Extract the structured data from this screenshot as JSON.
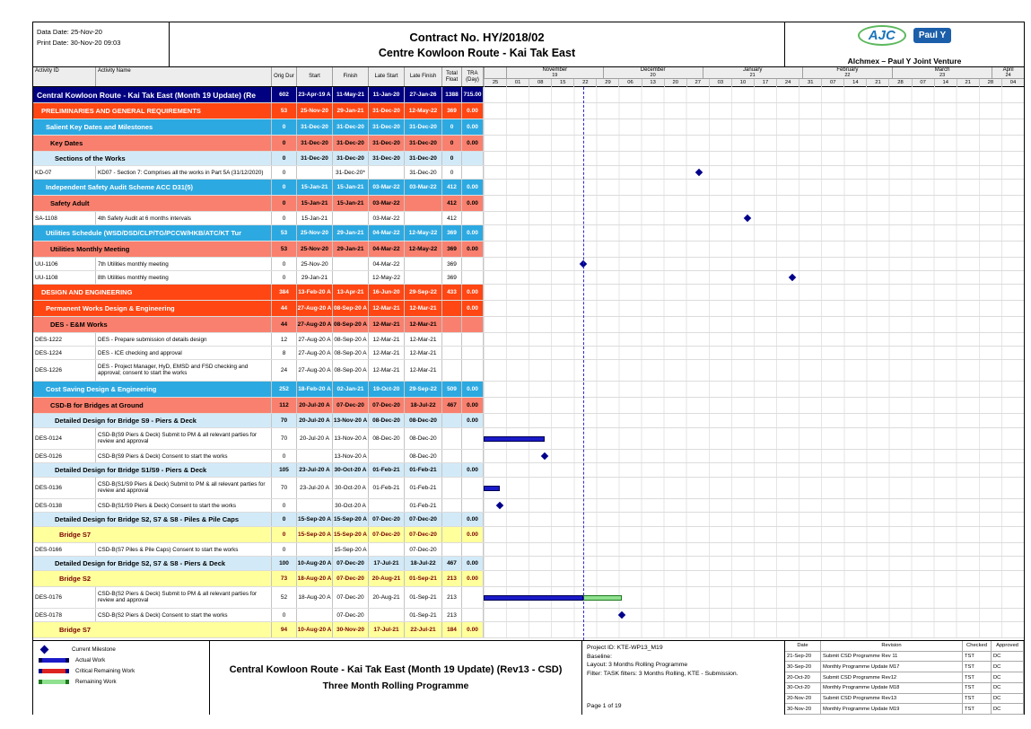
{
  "header": {
    "data_date": "Data Date: 25-Nov-20",
    "print_date": "Print Date: 30-Nov-20 09:03",
    "title": "Contract No. HY/2018/02",
    "subtitle": "Centre Kowloon Route - Kai Tak East",
    "logo_ajc": "AJC",
    "logo_pauly": "Paul Y",
    "venture": "Alchmex – Paul Y Joint Venture"
  },
  "columns": [
    "Activity ID",
    "Activity Name",
    "Orig Dur",
    "Start",
    "Finish",
    "Late Start",
    "Late Finish",
    "Total Float",
    "TRA (Day)"
  ],
  "timeline": {
    "months": [
      {
        "name": "",
        "num": "",
        "d0": 0,
        "d1": 7
      },
      {
        "name": "November",
        "num": "19",
        "d0": 7,
        "d1": 37
      },
      {
        "name": "December",
        "num": "20",
        "d0": 37,
        "d1": 68
      },
      {
        "name": "January",
        "num": "21",
        "d0": 68,
        "d1": 99
      },
      {
        "name": "February",
        "num": "22",
        "d0": 99,
        "d1": 127
      },
      {
        "name": "March",
        "num": "23",
        "d0": 127,
        "d1": 158
      },
      {
        "name": "April",
        "num": "24",
        "d0": 158,
        "d1": 168
      }
    ],
    "weeks": [
      "25",
      "01",
      "08",
      "15",
      "22",
      "29",
      "06",
      "13",
      "20",
      "27",
      "03",
      "10",
      "17",
      "24",
      "31",
      "07",
      "14",
      "21",
      "28",
      "07",
      "14",
      "21",
      "28",
      "04"
    ],
    "data_date_day": 31
  },
  "colors": {
    "navy_band": "#000080",
    "orange_band": "#FF4613",
    "blue_band": "#2DA9E1",
    "salmon_band": "#F9806E",
    "pale_blue_band": "#D2EAF8",
    "yellow_band": "#FFFF9C",
    "actual_bar": "#1A1AC8",
    "remaining_bar": "#8FE08F",
    "critical_bar": "#DD2222",
    "milestone": "#00008B",
    "data_date_line": "#2929D6"
  },
  "rows": [
    {
      "t": "navy",
      "lvl": 0,
      "label": "Central Kowloon Route - Kai Tak East (Month 19 Update) (Re",
      "d": "602",
      "s": "23-Apr-19 A",
      "f": "11-May-21",
      "ls": "11-Jan-20",
      "lf": "27-Jan-26",
      "tf": "1388",
      "tra": "715.00"
    },
    {
      "t": "orange",
      "lvl": 1,
      "label": "PRELIMINARIES AND GENERAL REQUIREMENTS",
      "d": "53",
      "s": "25-Nov-20",
      "f": "29-Jan-21",
      "ls": "31-Dec-20",
      "lf": "12-May-22",
      "tf": "369",
      "tra": "0.00"
    },
    {
      "t": "blue",
      "lvl": 2,
      "label": "Salient Key Dates and Milestones",
      "d": "0",
      "s": "31-Dec-20",
      "f": "31-Dec-20",
      "ls": "31-Dec-20",
      "lf": "31-Dec-20",
      "tf": "0",
      "tra": "0.00"
    },
    {
      "t": "salmon",
      "lvl": 3,
      "label": "Key Dates",
      "d": "0",
      "s": "31-Dec-20",
      "f": "31-Dec-20",
      "ls": "31-Dec-20",
      "lf": "31-Dec-20",
      "tf": "0",
      "tra": "0.00"
    },
    {
      "t": "sub",
      "lvl": 4,
      "label": "Sections of the Works",
      "d": "0",
      "s": "31-Dec-20",
      "f": "31-Dec-20",
      "ls": "31-Dec-20",
      "lf": "31-Dec-20",
      "tf": "0",
      "tra": ""
    },
    {
      "t": "task",
      "id": "KD-07",
      "name": "KD07 - Section 7: Comprises all the works in Part 5A (31/12/2020)",
      "d": "0",
      "s": "",
      "f": "31-Dec-20*",
      "ls": "",
      "lf": "31-Dec-20",
      "tf": "0",
      "tra": "",
      "g": [
        {
          "k": "ms",
          "day": 67
        }
      ]
    },
    {
      "t": "blue",
      "lvl": 2,
      "label": "Independent Safety Audit Scheme ACC D31(5)",
      "d": "0",
      "s": "15-Jan-21",
      "f": "15-Jan-21",
      "ls": "03-Mar-22",
      "lf": "03-Mar-22",
      "tf": "412",
      "tra": "0.00"
    },
    {
      "t": "salmon",
      "lvl": 3,
      "label": "Safety Adult",
      "d": "0",
      "s": "15-Jan-21",
      "f": "15-Jan-21",
      "ls": "03-Mar-22",
      "lf": "",
      "tf": "412",
      "tra": "0.00"
    },
    {
      "t": "task",
      "id": "SA-1108",
      "name": "4th Safety Audit at 6 months intervals",
      "d": "0",
      "s": "15-Jan-21",
      "f": "",
      "ls": "03-Mar-22",
      "lf": "",
      "tf": "412",
      "tra": "",
      "g": [
        {
          "k": "ms",
          "day": 82
        }
      ]
    },
    {
      "t": "blue",
      "lvl": 2,
      "label": "Utilities Schedule (WSD/DSD/CLP/TG/PCCW/HKB/ATC/KT Tur",
      "d": "53",
      "s": "25-Nov-20",
      "f": "29-Jan-21",
      "ls": "04-Mar-22",
      "lf": "12-May-22",
      "tf": "369",
      "tra": "0.00"
    },
    {
      "t": "salmon",
      "lvl": 3,
      "label": "Utilities Monthly Meeting",
      "d": "53",
      "s": "25-Nov-20",
      "f": "29-Jan-21",
      "ls": "04-Mar-22",
      "lf": "12-May-22",
      "tf": "369",
      "tra": "0.00"
    },
    {
      "t": "task",
      "id": "UU-1106",
      "name": "7th  Utilities monthly meeting",
      "d": "0",
      "s": "25-Nov-20",
      "f": "",
      "ls": "04-Mar-22",
      "lf": "",
      "tf": "369",
      "tra": "",
      "g": [
        {
          "k": "ms",
          "day": 31
        }
      ]
    },
    {
      "t": "task",
      "id": "UU-1108",
      "name": "8th Utilities monthly meeting",
      "d": "0",
      "s": "29-Jan-21",
      "f": "",
      "ls": "12-May-22",
      "lf": "",
      "tf": "369",
      "tra": "",
      "g": [
        {
          "k": "ms",
          "day": 96
        }
      ]
    },
    {
      "t": "orange",
      "lvl": 1,
      "label": "DESIGN AND ENGINEERING",
      "d": "384",
      "s": "13-Feb-20 A",
      "f": "13-Apr-21",
      "ls": "16-Jun-20",
      "lf": "29-Sep-22",
      "tf": "433",
      "tra": "0.00"
    },
    {
      "t": "orange",
      "lvl": 2,
      "label": "Permanent Works Design & Engineering",
      "d": "44",
      "s": "27-Aug-20 A",
      "f": "08-Sep-20 A",
      "ls": "12-Mar-21",
      "lf": "12-Mar-21",
      "tf": "",
      "tra": "0.00"
    },
    {
      "t": "salmon",
      "lvl": 3,
      "label": "DES - E&M Works",
      "d": "44",
      "s": "27-Aug-20 A",
      "f": "08-Sep-20 A",
      "ls": "12-Mar-21",
      "lf": "12-Mar-21",
      "tf": "",
      "tra": ""
    },
    {
      "t": "task",
      "id": "DES-1222",
      "name": "DES - Prepare submission of details design",
      "d": "12",
      "s": "27-Aug-20 A",
      "f": "08-Sep-20 A",
      "ls": "12-Mar-21",
      "lf": "12-Mar-21",
      "tf": "",
      "tra": ""
    },
    {
      "t": "task",
      "id": "DES-1224",
      "name": "DES - ICE checking and approval",
      "d": "8",
      "s": "27-Aug-20 A",
      "f": "08-Sep-20 A",
      "ls": "12-Mar-21",
      "lf": "12-Mar-21",
      "tf": "",
      "tra": ""
    },
    {
      "t": "task",
      "h": 2,
      "id": "DES-1226",
      "name": "DES - Project Manager, HyD, EMSD and FSD checking and approval; consent to start the works",
      "d": "24",
      "s": "27-Aug-20 A",
      "f": "08-Sep-20 A",
      "ls": "12-Mar-21",
      "lf": "12-Mar-21",
      "tf": "",
      "tra": ""
    },
    {
      "t": "blue",
      "lvl": 2,
      "label": "Cost Saving Design & Engineering",
      "d": "252",
      "s": "18-Feb-20 A",
      "f": "02-Jan-21",
      "ls": "19-Oct-20",
      "lf": "29-Sep-22",
      "tf": "509",
      "tra": "0.00"
    },
    {
      "t": "salmon",
      "lvl": 3,
      "label": "CSD-B for Bridges at Ground",
      "d": "112",
      "s": "20-Jul-20 A",
      "f": "07-Dec-20",
      "ls": "07-Dec-20",
      "lf": "18-Jul-22",
      "tf": "467",
      "tra": "0.00"
    },
    {
      "t": "sub",
      "lvl": 4,
      "label": "Detailed Design for Bridge S9 - Piers & Deck",
      "d": "70",
      "s": "20-Jul-20 A",
      "f": "13-Nov-20 A",
      "ls": "08-Dec-20",
      "lf": "08-Dec-20",
      "tf": "",
      "tra": "0.00"
    },
    {
      "t": "task",
      "h": 2,
      "id": "DES-0124",
      "name": "CSD-B(S9 Piers & Deck) Submit to PM & all relevant parties for review and approval",
      "d": "70",
      "s": "20-Jul-20 A",
      "f": "13-Nov-20 A",
      "ls": "08-Dec-20",
      "lf": "08-Dec-20",
      "tf": "",
      "tra": "",
      "g": [
        {
          "k": "bar",
          "day0": 0,
          "day1": 19
        }
      ]
    },
    {
      "t": "task",
      "id": "DES-0126",
      "name": "CSD-B(S9 Piers & Deck) Consent to start the works",
      "d": "0",
      "s": "",
      "f": "13-Nov-20 A",
      "ls": "",
      "lf": "08-Dec-20",
      "tf": "",
      "tra": "",
      "g": [
        {
          "k": "ms",
          "day": 19
        }
      ]
    },
    {
      "t": "sub",
      "lvl": 4,
      "label": "Detailed Design for Bridge S1/S9 - Piers & Deck",
      "d": "105",
      "s": "23-Jul-20 A",
      "f": "30-Oct-20 A",
      "ls": "01-Feb-21",
      "lf": "01-Feb-21",
      "tf": "",
      "tra": "0.00"
    },
    {
      "t": "task",
      "h": 2,
      "id": "DES-0136",
      "name": "CSD-B(S1/S9 Piers & Deck) Submit to PM & all relevant parties for review and approval",
      "d": "70",
      "s": "23-Jul-20 A",
      "f": "30-Oct-20 A",
      "ls": "01-Feb-21",
      "lf": "01-Feb-21",
      "tf": "",
      "tra": "",
      "g": [
        {
          "k": "bar",
          "day0": 0,
          "day1": 5
        }
      ]
    },
    {
      "t": "task",
      "id": "DES-0138",
      "name": "CSD-B(S1/S9 Piers & Deck) Consent to start the works",
      "d": "0",
      "s": "",
      "f": "30-Oct-20 A",
      "ls": "",
      "lf": "01-Feb-21",
      "tf": "",
      "tra": "",
      "g": [
        {
          "k": "ms",
          "day": 5
        }
      ]
    },
    {
      "t": "sub",
      "lvl": 4,
      "label": "Detailed Design for Bridge S2, S7 & S8 - Piles & Pile Caps",
      "d": "0",
      "s": "15-Sep-20 A",
      "f": "15-Sep-20 A",
      "ls": "07-Dec-20",
      "lf": "07-Dec-20",
      "tf": "",
      "tra": "0.00"
    },
    {
      "t": "yellow",
      "lvl": 5,
      "label": "Bridge S7",
      "d": "0",
      "s": "15-Sep-20 A",
      "f": "15-Sep-20 A",
      "ls": "07-Dec-20",
      "lf": "07-Dec-20",
      "tf": "",
      "tra": "0.00"
    },
    {
      "t": "task",
      "id": "DES-0166",
      "name": "CSD-B(S7 Piles & Pile Caps) Consent to start the works",
      "d": "0",
      "s": "",
      "f": "15-Sep-20 A",
      "ls": "",
      "lf": "07-Dec-20",
      "tf": "",
      "tra": ""
    },
    {
      "t": "sub",
      "lvl": 4,
      "label": "Detailed Design for Bridge S2, S7 & S8 - Piers & Deck",
      "d": "100",
      "s": "10-Aug-20 A",
      "f": "07-Dec-20",
      "ls": "17-Jul-21",
      "lf": "18-Jul-22",
      "tf": "467",
      "tra": "0.00"
    },
    {
      "t": "yellow",
      "lvl": 5,
      "label": "Bridge S2",
      "d": "73",
      "s": "18-Aug-20 A",
      "f": "07-Dec-20",
      "ls": "20-Aug-21",
      "lf": "01-Sep-21",
      "tf": "213",
      "tra": "0.00"
    },
    {
      "t": "task",
      "h": 2,
      "id": "DES-0176",
      "name": "CSD-B(S2 Piers & Deck) Submit to PM & all relevant parties for review and approval",
      "d": "52",
      "s": "18-Aug-20 A",
      "f": "07-Dec-20",
      "ls": "20-Aug-21",
      "lf": "01-Sep-21",
      "tf": "213",
      "tra": "",
      "g": [
        {
          "k": "bar",
          "day0": 0,
          "day1": 31
        },
        {
          "k": "rem",
          "day0": 31,
          "day1": 43
        }
      ]
    },
    {
      "t": "task",
      "id": "DES-0178",
      "name": "CSD-B(S2 Piers & Deck) Consent to start the works",
      "d": "0",
      "s": "",
      "f": "07-Dec-20",
      "ls": "",
      "lf": "01-Sep-21",
      "tf": "213",
      "tra": "",
      "g": [
        {
          "k": "ms",
          "day": 43
        }
      ]
    },
    {
      "t": "yellow",
      "lvl": 5,
      "label": "Bridge S7",
      "d": "94",
      "s": "10-Aug-20 A",
      "f": "30-Nov-20",
      "ls": "17-Jul-21",
      "lf": "22-Jul-21",
      "tf": "184",
      "tra": "0.00"
    }
  ],
  "footer": {
    "legend": [
      {
        "kind": "milestone",
        "label": "Current Milestone"
      },
      {
        "kind": "actual",
        "label": "Actual Work"
      },
      {
        "kind": "critical",
        "label": "Critical Remaining Work"
      },
      {
        "kind": "remaining",
        "label": "Remaining Work"
      }
    ],
    "title1": "Central Kowloon Route - Kai Tak East (Month 19 Update) (Rev13 - CSD)",
    "title2": "Three Month Rolling Programme",
    "info": [
      "Project ID: KTE-WP13_M19",
      "Baseline:",
      "Layout: 3 Months Rolling Programme",
      "Filter: TASK filters: 3 Months Rolling, KTE - Submission.",
      "Page 1 of 19"
    ],
    "revisions": {
      "headers": [
        "Date",
        "Revision",
        "Checked",
        "Approved"
      ],
      "rows": [
        [
          "21-Sep-20",
          "Submit CSD Programme Rev 11",
          "TST",
          "DC"
        ],
        [
          "30-Sep-20",
          "Monthly Programme Update M17",
          "TST",
          "DC"
        ],
        [
          "20-Oct-20",
          "Submit CSD Programme Rev12",
          "TST",
          "DC"
        ],
        [
          "30-Oct-20",
          "Monthly Programme Update M18",
          "TST",
          "DC"
        ],
        [
          "20-Nov-20",
          "Submit CSD Programme Rev13",
          "TST",
          "DC"
        ],
        [
          "30-Nov-20",
          "Monthly Programme Update M19",
          "TST",
          "DC"
        ]
      ]
    }
  }
}
